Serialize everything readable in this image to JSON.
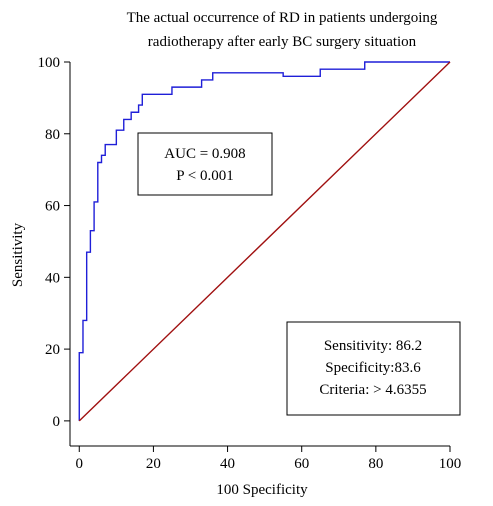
{
  "chart_data": {
    "type": "line",
    "title": [
      "The actual occurrence of RD in patients undergoing",
      "radiotherapy after early BC surgery situation"
    ],
    "x_label": "100 Specificity",
    "y_label": "Sensitivity",
    "xlim": [
      -2.5,
      100
    ],
    "ylim": [
      -7,
      100
    ],
    "xticks": [
      0,
      20,
      40,
      60,
      80,
      100
    ],
    "yticks": [
      0,
      20,
      40,
      60,
      80,
      100
    ],
    "series": [
      {
        "color": "#1f1fd8",
        "x": [
          0,
          0,
          1,
          1,
          2,
          2,
          3,
          3,
          4,
          4,
          5,
          5,
          6,
          6,
          7,
          7,
          10,
          10,
          12,
          12,
          14,
          14,
          16,
          16,
          17,
          17,
          25,
          25,
          33,
          33,
          36,
          36,
          55,
          55,
          65,
          65,
          77,
          77,
          100
        ],
        "values": [
          0,
          19,
          19,
          28,
          28,
          47,
          47,
          53,
          53,
          61,
          61,
          72,
          72,
          74,
          74,
          77,
          77,
          81,
          81,
          84,
          84,
          86,
          86,
          88,
          88,
          91,
          91,
          93,
          93,
          95,
          95,
          97,
          97,
          96,
          96,
          98,
          98,
          100,
          100
        ]
      },
      {
        "color": "#a01010",
        "x": [
          0,
          100
        ],
        "values": [
          0,
          100
        ]
      }
    ],
    "annotations": [
      {
        "lines": [
          "AUC = 0.908",
          "P < 0.001"
        ]
      },
      {
        "lines": [
          "Sensitivity: 86.2",
          "Specificity:83.6",
          "Criteria: > 4.6355"
        ]
      }
    ]
  }
}
